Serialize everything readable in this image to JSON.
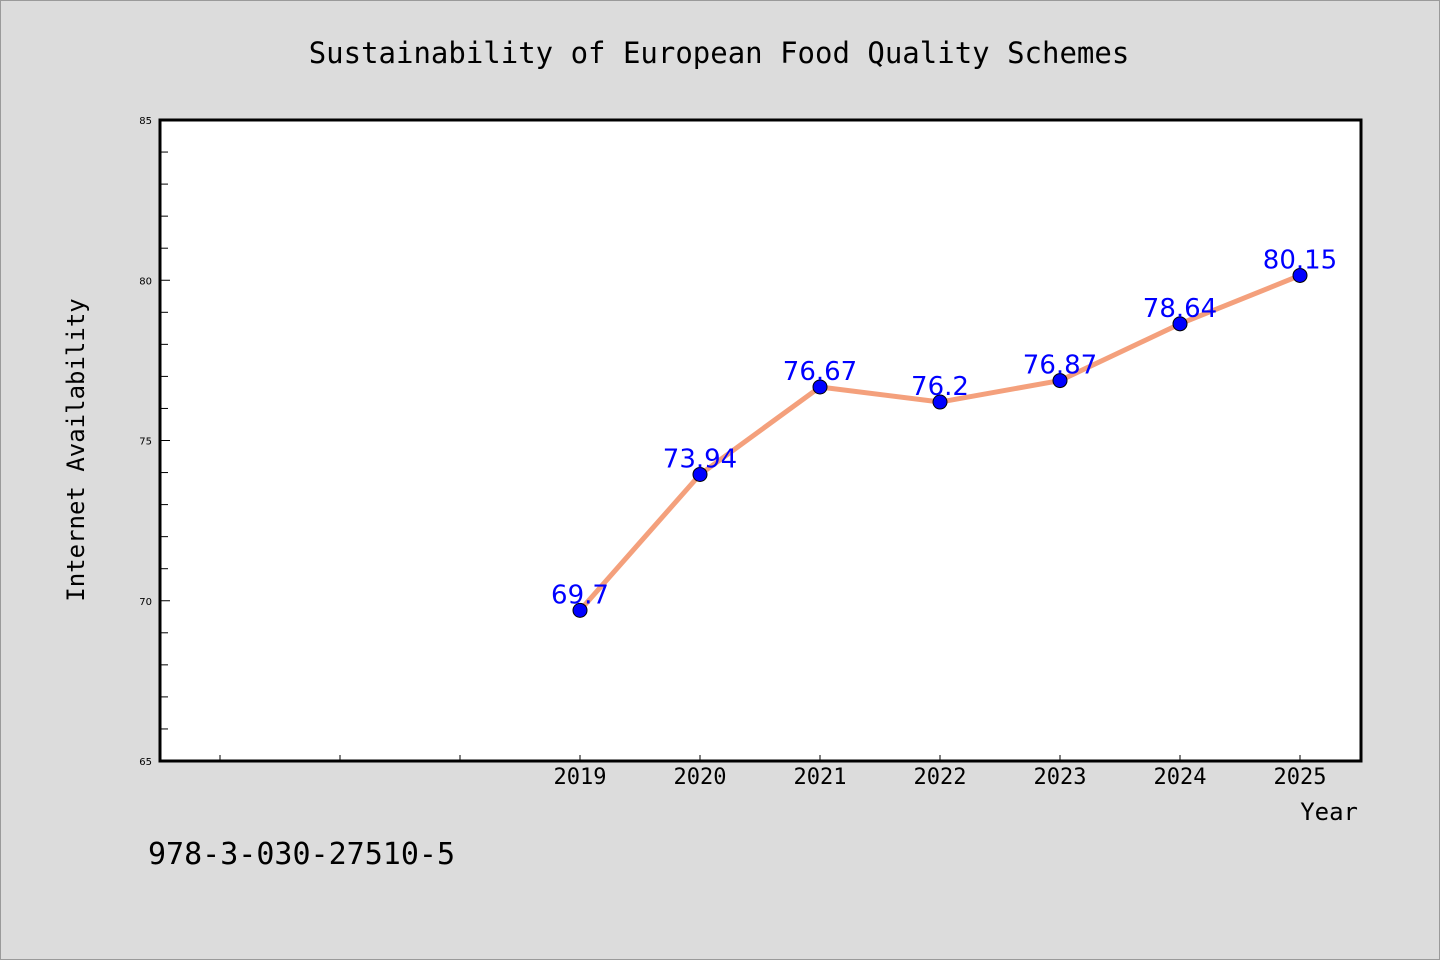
{
  "chart_data": {
    "type": "line",
    "title": "Sustainability of European Food Quality Schemes",
    "xlabel": "Year",
    "ylabel": "Internet Availability",
    "x": [
      "2019",
      "2020",
      "2021",
      "2022",
      "2023",
      "2024",
      "2025"
    ],
    "series": [
      {
        "values": [
          69.7,
          73.94,
          76.67,
          76.2,
          76.87,
          78.64,
          80.15
        ],
        "labels": [
          "69.7",
          "73.94",
          "76.67",
          "76.2",
          "76.87",
          "78.64",
          "80.15"
        ]
      }
    ],
    "ylim": [
      65,
      85
    ],
    "yticks": [
      "65",
      "70",
      "75",
      "80",
      "85"
    ],
    "grid": false,
    "legend": "none",
    "colors": {
      "line": "#f4a07c",
      "marker": "#0000ff",
      "label": "#0000ff",
      "plot_background": "#ffffff",
      "page_background": "#dcdcdc"
    }
  },
  "footer": {
    "code": "978-3-030-27510-5"
  }
}
